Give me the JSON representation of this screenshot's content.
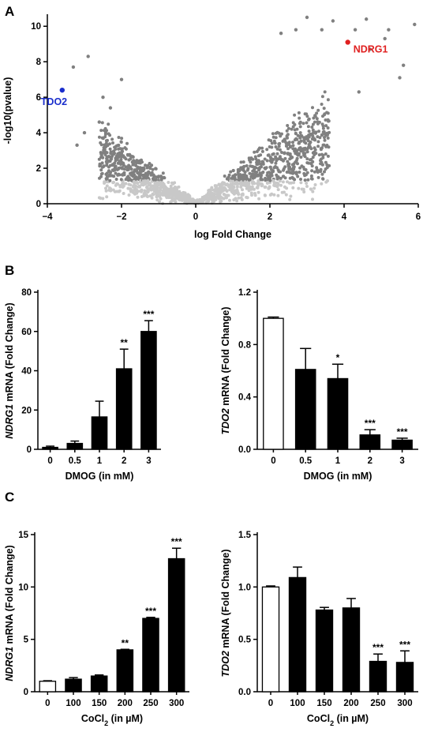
{
  "panels": [
    {
      "id": "A",
      "letter": "A"
    },
    {
      "id": "B",
      "letter": "B"
    },
    {
      "id": "C",
      "letter": "C"
    }
  ],
  "chart_data": [
    {
      "id": "volcano",
      "type": "scatter",
      "xlabel": "log Fold Change",
      "ylabel": "-log10(pvalue)",
      "xlim": [
        -4,
        6
      ],
      "ylim": [
        0,
        10.5
      ],
      "xticks": [
        -4,
        -2,
        0,
        2,
        4,
        6
      ],
      "yticks": [
        0,
        2,
        4,
        6,
        8,
        10
      ],
      "colors": {
        "not_significant": "#c8c8c8",
        "significant": "#808080",
        "NDRG1": "#e02020",
        "TDO2": "#1a2ecc"
      },
      "highlighted": [
        {
          "label": "NDRG1",
          "x": 4.1,
          "y": 9.1,
          "color": "#e02020"
        },
        {
          "label": "TDO2",
          "x": -3.6,
          "y": 6.4,
          "color": "#1a2ecc"
        }
      ],
      "outliers": [
        {
          "x": -3.3,
          "y": 7.7
        },
        {
          "x": -3.0,
          "y": 4.0
        },
        {
          "x": -2.9,
          "y": 8.3
        },
        {
          "x": -2.6,
          "y": 4.6
        },
        {
          "x": -2.3,
          "y": 5.4
        },
        {
          "x": -2.0,
          "y": 7.0
        },
        {
          "x": -3.2,
          "y": 3.3
        },
        {
          "x": -2.5,
          "y": 6.0
        },
        {
          "x": 3.0,
          "y": 10.5
        },
        {
          "x": 3.4,
          "y": 9.8
        },
        {
          "x": 4.3,
          "y": 9.8
        },
        {
          "x": 4.6,
          "y": 10.4
        },
        {
          "x": 5.1,
          "y": 9.3
        },
        {
          "x": 5.5,
          "y": 7.1
        },
        {
          "x": 5.9,
          "y": 10.1
        },
        {
          "x": 5.2,
          "y": 9.8
        },
        {
          "x": 4.7,
          "y": 8.7
        },
        {
          "x": 3.7,
          "y": 10.3
        },
        {
          "x": 4.4,
          "y": 6.3
        },
        {
          "x": 5.6,
          "y": 7.8
        },
        {
          "x": 2.3,
          "y": 9.6
        },
        {
          "x": 2.7,
          "y": 9.8
        }
      ]
    },
    {
      "id": "B-left",
      "type": "bar",
      "categories": [
        "0",
        "0.5",
        "1",
        "2",
        "3"
      ],
      "values": [
        1,
        3,
        16.5,
        41,
        60
      ],
      "errors": [
        0.6,
        1.2,
        8,
        10,
        5.5
      ],
      "significance": [
        "",
        "",
        "",
        "**",
        "***"
      ],
      "fills": [
        "#000000",
        "#000000",
        "#000000",
        "#000000",
        "#000000"
      ],
      "xlabel": "DMOG (in mM)",
      "ylabel_italic": "NDRG1",
      "ylabel_rest": " mRNA (Fold Change)",
      "ylim": [
        0,
        80
      ],
      "yticks": [
        0,
        20,
        40,
        60,
        80
      ],
      "ytick_labels": [
        "0",
        "20",
        "40",
        "60",
        "80"
      ]
    },
    {
      "id": "B-right",
      "type": "bar",
      "categories": [
        "0",
        "0.5",
        "1",
        "2",
        "3"
      ],
      "values": [
        1.0,
        0.61,
        0.54,
        0.11,
        0.07
      ],
      "errors": [
        0.01,
        0.16,
        0.11,
        0.04,
        0.015
      ],
      "significance": [
        "",
        "",
        "*",
        "***",
        "***"
      ],
      "fills": [
        "#ffffff",
        "#000000",
        "#000000",
        "#000000",
        "#000000"
      ],
      "xlabel": "DMOG (in mM)",
      "ylabel_italic": "TDO2",
      "ylabel_rest": " mRNA (Fold Change)",
      "ylim": [
        0,
        1.2
      ],
      "yticks": [
        0,
        0.4,
        0.8,
        1.2
      ],
      "ytick_labels": [
        "0.0",
        "0.4",
        "0.8",
        "1.2"
      ]
    },
    {
      "id": "C-left",
      "type": "bar",
      "categories": [
        "0",
        "100",
        "150",
        "200",
        "250",
        "300"
      ],
      "values": [
        1.0,
        1.2,
        1.5,
        4.0,
        7.0,
        12.7
      ],
      "errors": [
        0.05,
        0.15,
        0.1,
        0.05,
        0.1,
        1.0
      ],
      "significance": [
        "",
        "",
        "",
        "**",
        "***",
        "***"
      ],
      "fills": [
        "#ffffff",
        "#000000",
        "#000000",
        "#000000",
        "#000000",
        "#000000"
      ],
      "xlabel_main": "CoCl",
      "xlabel_sub": "2",
      "xlabel_rest": " (in µM)",
      "ylabel_italic": "NDRG1",
      "ylabel_rest": " mRNA (Fold Change)",
      "ylim": [
        0,
        15
      ],
      "yticks": [
        0,
        5,
        10,
        15
      ],
      "ytick_labels": [
        "0",
        "5",
        "10",
        "15"
      ]
    },
    {
      "id": "C-right",
      "type": "bar",
      "categories": [
        "0",
        "100",
        "150",
        "200",
        "250",
        "300"
      ],
      "values": [
        1.0,
        1.09,
        0.78,
        0.8,
        0.29,
        0.28
      ],
      "errors": [
        0.01,
        0.1,
        0.025,
        0.09,
        0.07,
        0.11
      ],
      "significance": [
        "",
        "",
        "",
        "",
        "***",
        "***"
      ],
      "fills": [
        "#ffffff",
        "#000000",
        "#000000",
        "#000000",
        "#000000",
        "#000000"
      ],
      "xlabel_main": "CoCl",
      "xlabel_sub": "2",
      "xlabel_rest": " (in µM)",
      "ylabel_italic": "TDO2",
      "ylabel_rest": " mRNA (Fold Change)",
      "ylim": [
        0,
        1.5
      ],
      "yticks": [
        0,
        0.5,
        1.0,
        1.5
      ],
      "ytick_labels": [
        "0.0",
        "0.5",
        "1.0",
        "1.5"
      ]
    }
  ]
}
